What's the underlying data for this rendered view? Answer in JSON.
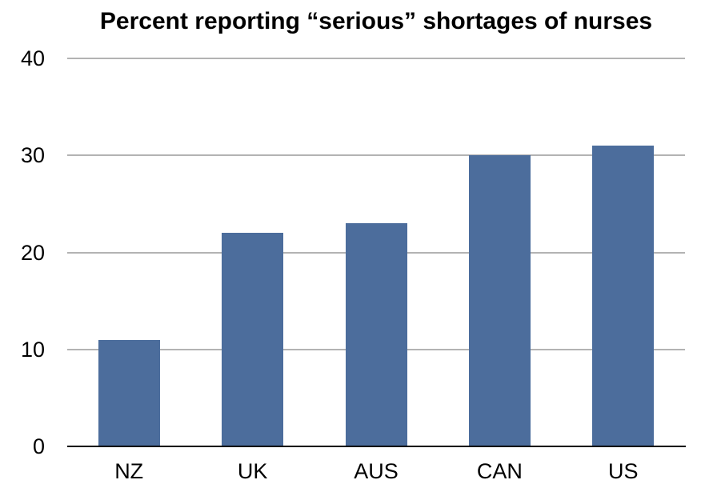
{
  "chart_data": {
    "type": "bar",
    "title": "Percent reporting “serious” shortages of nurses",
    "categories": [
      "NZ",
      "UK",
      "AUS",
      "CAN",
      "US"
    ],
    "values": [
      11,
      22,
      23,
      30,
      31
    ],
    "xlabel": "",
    "ylabel": "",
    "ylim": [
      0,
      40
    ],
    "yticks": [
      0,
      10,
      20,
      30,
      40
    ],
    "grid": true,
    "legend_position": "none",
    "bar_color": "#4c6d9c",
    "gridline_color": "#b3b3b3",
    "axis_color": "#000000",
    "text_color": "#000000",
    "background_color": "#ffffff"
  }
}
